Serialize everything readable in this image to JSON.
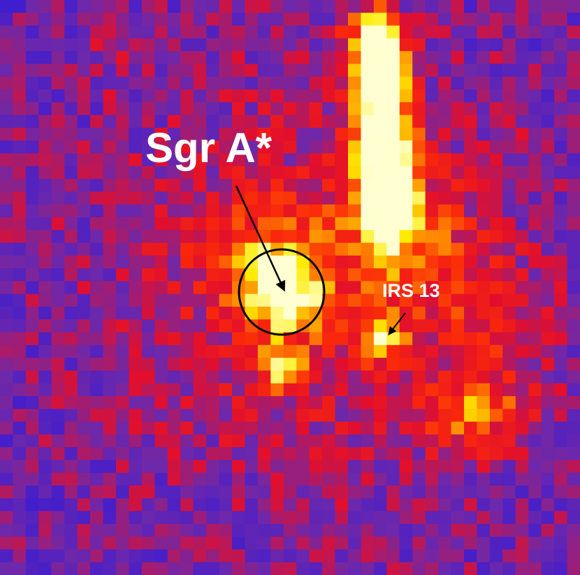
{
  "labels": {
    "source": "Sgr A*",
    "irs": "IRS 13"
  }
}
